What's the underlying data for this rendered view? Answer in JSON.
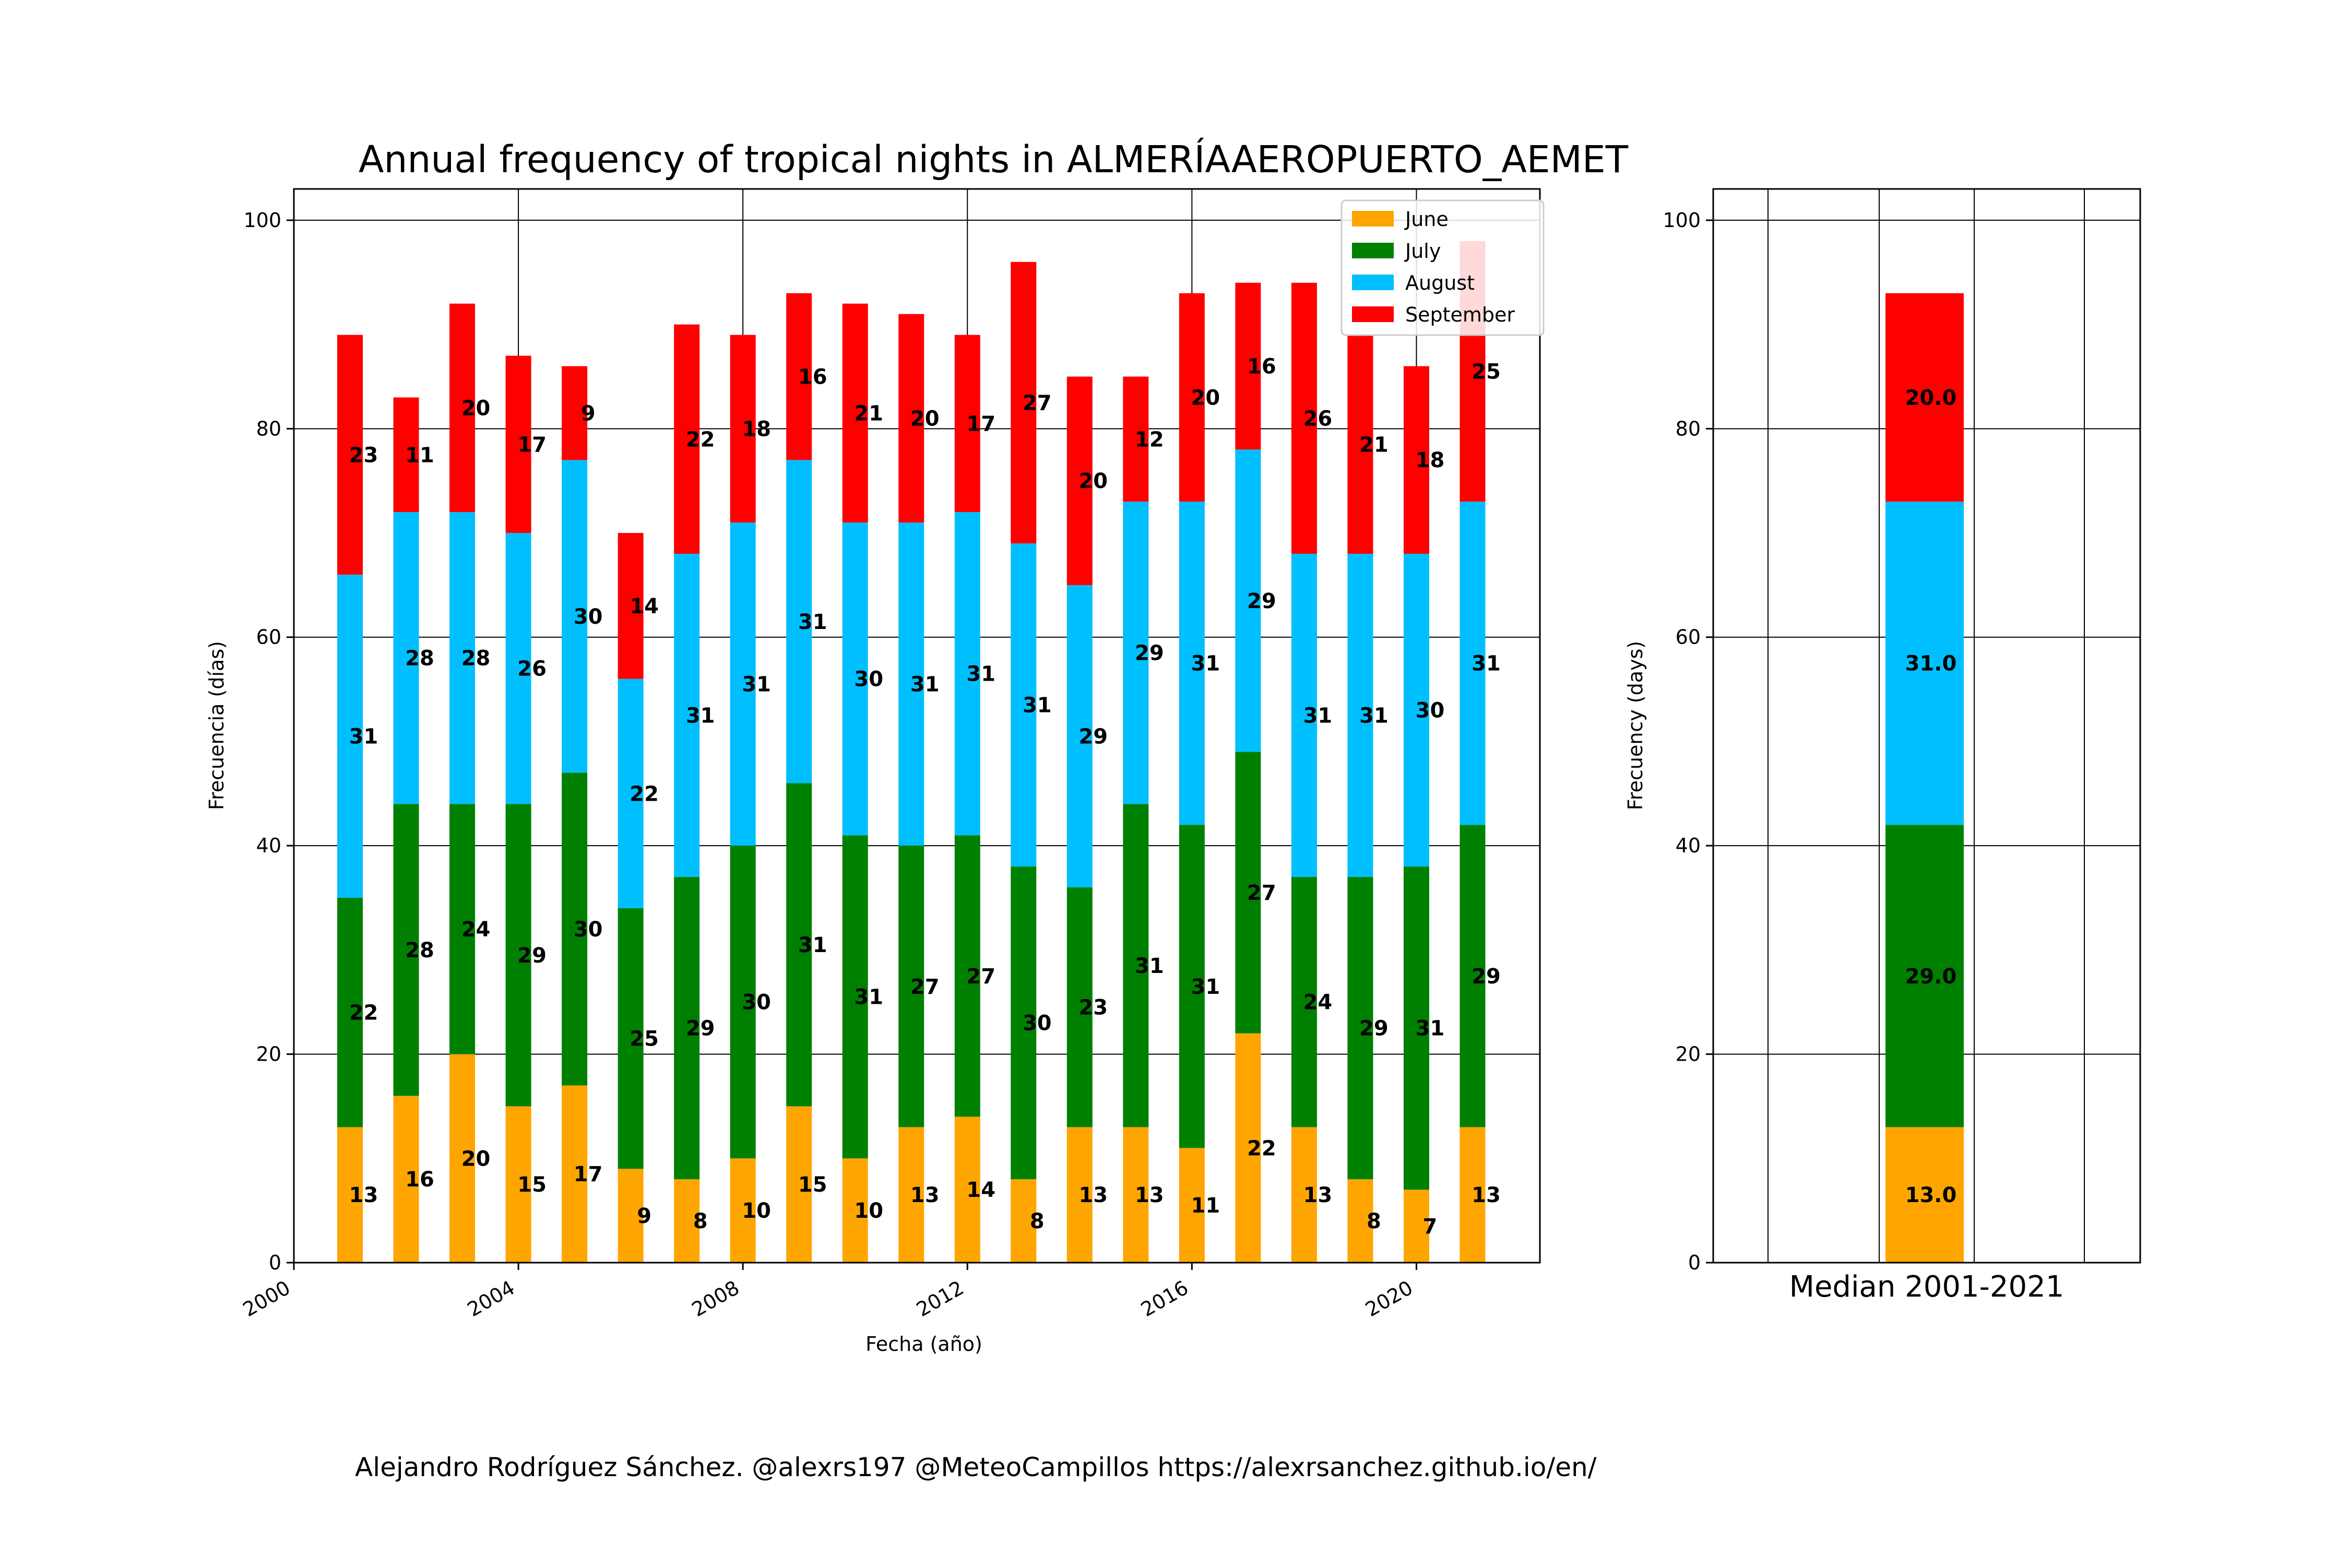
{
  "chart_data": [
    {
      "type": "bar",
      "stacked": true,
      "title": "Annual frequency of tropical nights in ALMERÍAAEROPUERTO_AEMET",
      "xlabel": "Fecha (año)",
      "ylabel": "Frecuencia (días)",
      "ylim": [
        0,
        103
      ],
      "xlim": [
        2000,
        2022.2
      ],
      "grid": true,
      "legend_position": "top-right",
      "x_ticks": [
        2000,
        2004,
        2008,
        2012,
        2016,
        2020
      ],
      "y_ticks": [
        0,
        20,
        40,
        60,
        80,
        100
      ],
      "x": [
        2001,
        2002,
        2003,
        2004,
        2005,
        2006,
        2007,
        2008,
        2009,
        2010,
        2011,
        2012,
        2013,
        2014,
        2015,
        2016,
        2017,
        2018,
        2019,
        2020,
        2021
      ],
      "series": [
        {
          "name": "June",
          "color": "#ffa500",
          "values": [
            13,
            16,
            20,
            15,
            17,
            9,
            8,
            10,
            15,
            10,
            13,
            14,
            8,
            13,
            13,
            11,
            22,
            13,
            8,
            7,
            13
          ]
        },
        {
          "name": "July",
          "color": "#008000",
          "values": [
            22,
            28,
            24,
            29,
            30,
            25,
            29,
            30,
            31,
            31,
            27,
            27,
            30,
            23,
            31,
            31,
            27,
            24,
            29,
            31,
            29
          ]
        },
        {
          "name": "August",
          "color": "#00bfff",
          "values": [
            31,
            28,
            28,
            26,
            30,
            22,
            31,
            31,
            31,
            30,
            31,
            31,
            31,
            29,
            29,
            31,
            29,
            31,
            31,
            30,
            31
          ]
        },
        {
          "name": "September",
          "color": "#ff0000",
          "values": [
            23,
            11,
            20,
            17,
            9,
            14,
            22,
            18,
            16,
            21,
            20,
            17,
            27,
            20,
            12,
            20,
            16,
            26,
            21,
            18,
            25
          ]
        }
      ]
    },
    {
      "type": "bar",
      "stacked": true,
      "title": "",
      "xlabel": "Median 2001-2021",
      "ylabel": "Frecuency (days)",
      "ylim": [
        0,
        103
      ],
      "y_ticks": [
        0,
        20,
        40,
        60,
        80,
        100
      ],
      "grid": true,
      "categories": [
        "Median 2001-2021"
      ],
      "series": [
        {
          "name": "June",
          "color": "#ffa500",
          "values": [
            13.0
          ]
        },
        {
          "name": "July",
          "color": "#008000",
          "values": [
            29.0
          ]
        },
        {
          "name": "August",
          "color": "#00bfff",
          "values": [
            31.0
          ]
        },
        {
          "name": "September",
          "color": "#ff0000",
          "values": [
            20.0
          ]
        }
      ]
    }
  ],
  "credits": "Alejandro Rodríguez Sánchez. @alexrs197 @MeteoCampillos   https://alexrsanchez.github.io/en/"
}
